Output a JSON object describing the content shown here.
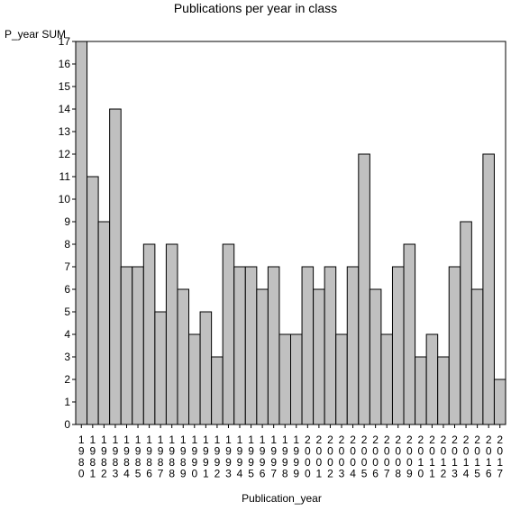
{
  "chart_data": {
    "type": "bar",
    "title": "Publications per year in class",
    "ylabel": "P_year SUM",
    "xlabel": "Publication_year",
    "ylim": [
      0,
      17
    ],
    "yticks": [
      0,
      1,
      2,
      3,
      4,
      5,
      6,
      7,
      8,
      9,
      10,
      11,
      12,
      13,
      14,
      15,
      16,
      17
    ],
    "categories": [
      "1980",
      "1981",
      "1982",
      "1983",
      "1984",
      "1985",
      "1986",
      "1987",
      "1988",
      "1989",
      "1990",
      "1991",
      "1992",
      "1993",
      "1994",
      "1995",
      "1996",
      "1997",
      "1998",
      "1999",
      "2000",
      "2001",
      "2002",
      "2003",
      "2004",
      "2005",
      "2006",
      "2007",
      "2008",
      "2009",
      "2010",
      "2011",
      "2012",
      "2013",
      "2014",
      "2015",
      "2016",
      "2017"
    ],
    "values": [
      17,
      11,
      9,
      14,
      7,
      7,
      8,
      5,
      8,
      6,
      4,
      5,
      3,
      8,
      7,
      7,
      6,
      7,
      4,
      4,
      7,
      6,
      7,
      4,
      7,
      12,
      6,
      4,
      7,
      8,
      3,
      4,
      3,
      7,
      9,
      6,
      12,
      2
    ],
    "bar_color": "#c0c0c0",
    "grid": false
  }
}
